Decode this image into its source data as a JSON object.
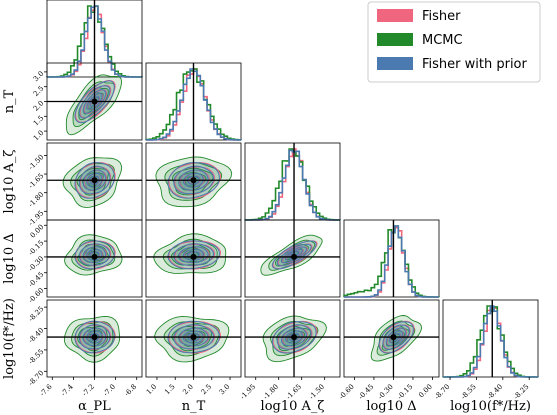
{
  "chart_data": {
    "type": "corner",
    "title": "",
    "parameters": [
      {
        "key": "alpha",
        "label": "α_PL",
        "true": -7.2,
        "range": [
          -7.65,
          -6.75
        ],
        "ticks": [
          "-7.6",
          "-7.4",
          "-7.2",
          "-7.0",
          "-6.8"
        ],
        "tickvals": [
          -7.6,
          -7.4,
          -7.2,
          -7.0,
          -6.8
        ],
        "mean": -7.2,
        "sigma": 0.085
      },
      {
        "key": "nT",
        "label": "n_T",
        "true": 2.0,
        "range": [
          0.7,
          3.3
        ],
        "ticks": [
          "1.0",
          "1.5",
          "2.0",
          "2.5",
          "3.0"
        ],
        "tickvals": [
          1.0,
          1.5,
          2.0,
          2.5,
          3.0
        ],
        "mean": 2.0,
        "sigma": 0.32
      },
      {
        "key": "Azeta",
        "label": "log10 A_ζ",
        "true": -1.7,
        "range": [
          -2.02,
          -1.4
        ],
        "ticks": [
          "-1.95",
          "-1.80",
          "-1.65",
          "-1.50"
        ],
        "tickvals": [
          -1.95,
          -1.8,
          -1.65,
          -1.5
        ],
        "mean": -1.7,
        "sigma": 0.065
      },
      {
        "key": "Delta",
        "label": "log10 Δ",
        "true": -0.3,
        "range": [
          -0.68,
          0.05
        ],
        "ticks": [
          "-0.60",
          "-0.45",
          "-0.30",
          "-0.15",
          "0.00"
        ],
        "tickvals": [
          -0.6,
          -0.45,
          -0.3,
          -0.15,
          0.0
        ],
        "mean": -0.28,
        "sigma": 0.06
      },
      {
        "key": "fstar",
        "label": "log10(f*/Hz)",
        "true": -8.46,
        "range": [
          -8.74,
          -8.2
        ],
        "ticks": [
          "-8.70",
          "-8.55",
          "-8.40",
          "-8.25"
        ],
        "tickvals": [
          -8.7,
          -8.55,
          -8.4,
          -8.25
        ],
        "mean": -8.46,
        "sigma": 0.05
      }
    ],
    "axis_labels": {
      "x": [
        "α_PL",
        "n_T",
        "log10 A_ζ",
        "log10 Δ",
        "log10(f*/Hz)"
      ],
      "y": [
        "",
        "n_T",
        "log10 A_ζ",
        "log10 Δ",
        "log10(f*/Hz)"
      ]
    },
    "y_ticks": {
      "nT": {
        "labels": [
          "1.0",
          "1.5",
          "2.0",
          "2.5",
          "3.0"
        ],
        "vals": [
          1.0,
          1.5,
          2.0,
          2.5,
          3.0
        ]
      },
      "Azeta": {
        "labels": [
          "-1.95",
          "-1.80",
          "-1.65",
          "-1.50"
        ],
        "vals": [
          -1.95,
          -1.8,
          -1.65,
          -1.5
        ]
      },
      "Delta": {
        "labels": [
          "-0.60",
          "-0.45",
          "-0.30",
          "-0.15",
          "0.00"
        ],
        "vals": [
          -0.6,
          -0.45,
          -0.3,
          -0.15,
          0.0
        ]
      },
      "fstar": {
        "labels": [
          "-8.70",
          "-8.55",
          "-8.40",
          "-8.25"
        ],
        "vals": [
          -8.7,
          -8.55,
          -8.4,
          -8.25
        ]
      }
    },
    "correlations": {
      "1-0": 0.7,
      "2-0": 0.2,
      "2-1": 0.15,
      "3-0": 0.1,
      "3-1": 0.1,
      "3-2": 0.75,
      "4-0": 0.05,
      "4-1": 0.05,
      "4-2": 0.3,
      "4-3": 0.5
    },
    "series": [
      {
        "name": "Fisher",
        "color": "#f0667e",
        "style": "contours"
      },
      {
        "name": "MCMC",
        "color": "#228a2b",
        "style": "filled"
      },
      {
        "name": "Fisher with prior",
        "color": "#4a7ab0",
        "style": "contours"
      }
    ],
    "legend_position": "top-right",
    "grid": false
  }
}
